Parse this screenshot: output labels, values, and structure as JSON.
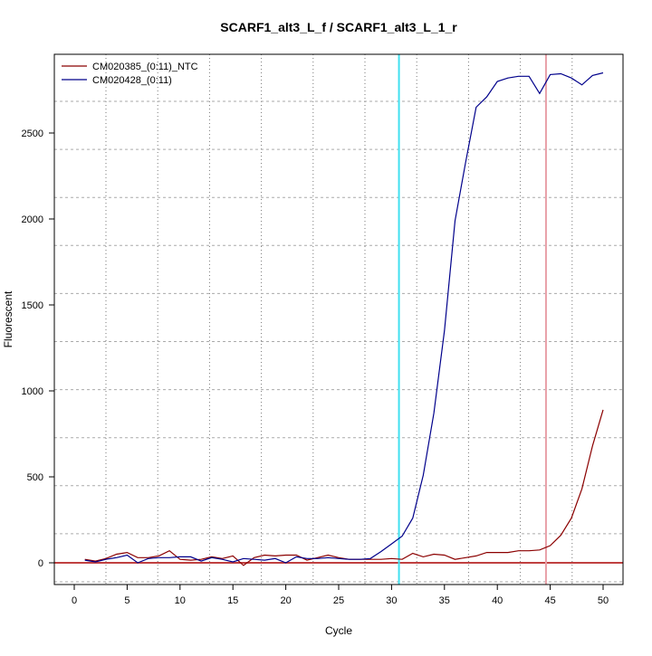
{
  "chart_data": {
    "type": "line",
    "title": "SCARF1_alt3_L_f / SCARF1_alt3_L_1_r",
    "xlabel": "Cycle",
    "ylabel": "Fluorescent",
    "xlim": [
      -2,
      52
    ],
    "ylim": [
      -130,
      3070
    ],
    "xticks": [
      0,
      5,
      10,
      15,
      20,
      25,
      30,
      35,
      40,
      45,
      50
    ],
    "yticks": [
      0,
      500,
      1000,
      1500,
      2000,
      2500
    ],
    "grid": true,
    "legend_position": "top-left",
    "x": [
      1,
      2,
      3,
      4,
      5,
      6,
      7,
      8,
      9,
      10,
      11,
      12,
      13,
      14,
      15,
      16,
      17,
      18,
      19,
      20,
      21,
      22,
      23,
      24,
      25,
      26,
      27,
      28,
      29,
      30,
      31,
      32,
      33,
      34,
      35,
      36,
      37,
      38,
      39,
      40,
      41,
      42,
      43,
      44,
      45,
      46,
      47,
      48,
      49,
      50
    ],
    "series": [
      {
        "name": "CM020385_(0:11)_NTC",
        "color": "#8b0000",
        "values": [
          20,
          10,
          25,
          50,
          60,
          30,
          30,
          40,
          70,
          20,
          15,
          20,
          35,
          25,
          40,
          -15,
          30,
          45,
          40,
          45,
          45,
          15,
          30,
          45,
          30,
          20,
          20,
          20,
          20,
          25,
          20,
          55,
          35,
          50,
          45,
          20,
          30,
          40,
          60,
          60,
          60,
          70,
          70,
          75,
          100,
          160,
          260,
          430,
          680,
          890
        ]
      },
      {
        "name": "CM020428_(0:11)",
        "color": "#00008b",
        "values": [
          15,
          5,
          20,
          30,
          45,
          0,
          25,
          30,
          30,
          35,
          35,
          10,
          30,
          20,
          5,
          25,
          20,
          15,
          25,
          0,
          35,
          25,
          25,
          30,
          25,
          20,
          20,
          25,
          65,
          110,
          155,
          260,
          510,
          870,
          1350,
          1990,
          2330,
          2650,
          2710,
          2800,
          2820,
          2830,
          2830,
          2730,
          2840,
          2845,
          2820,
          2780,
          2835,
          2850
        ]
      }
    ],
    "threshold_lines": [
      {
        "axis": "y",
        "value": 0,
        "color": "#c04040"
      },
      {
        "axis": "x",
        "value": 30.7,
        "color": "#40e0f0"
      },
      {
        "axis": "x",
        "value": 44.6,
        "color": "#e8a0a8"
      }
    ]
  }
}
